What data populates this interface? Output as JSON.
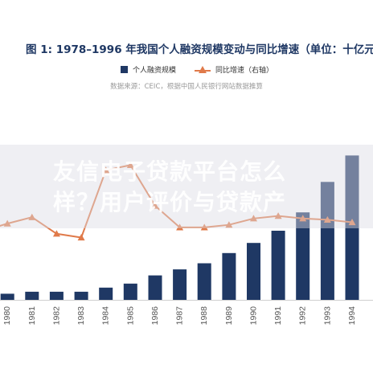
{
  "title": "图 1:  1978–1996 年我国个人融资规模变动与同比增速（单位：十亿元",
  "legend": {
    "bar_label": "个人融资规模",
    "line_label": "同比增速（右轴）"
  },
  "source": "数据来源：CEIC，根据中国人民银行网站数据推算",
  "watermark": {
    "line1": "友信电子贷款平台怎么",
    "line2": "样？用户评价与贷款产"
  },
  "colors": {
    "bar": "#1f3864",
    "line": "#e07a4a",
    "title": "#1f3864",
    "axis_text": "#555555"
  },
  "chart_data": {
    "type": "bar",
    "x_tick_labels": [
      "1980",
      "1981",
      "1982",
      "1983",
      "1984",
      "1985",
      "1986",
      "1987",
      "1988",
      "1989",
      "1990",
      "1991",
      "1992",
      "1993",
      "1994"
    ],
    "series": [
      {
        "name": "个人融资规模",
        "type": "bar",
        "axis": "left",
        "values": [
          3,
          4,
          4,
          4,
          6,
          8,
          12,
          15,
          18,
          23,
          28,
          34,
          43,
          58,
          71
        ]
      },
      {
        "name": "同比增速（右轴）",
        "type": "line",
        "axis": "right",
        "marker": "triangle",
        "values": [
          20,
          25,
          12,
          9,
          62,
          66,
          34,
          17,
          17,
          19,
          24,
          26,
          24,
          23,
          21
        ]
      }
    ],
    "x_range": [
      1979.7,
      1994
    ],
    "left_ylim": [
      0,
      100
    ],
    "right_ylim": [
      -40,
      120
    ],
    "partial_left_point": 14,
    "grid": false,
    "legend_position": "top-center"
  }
}
